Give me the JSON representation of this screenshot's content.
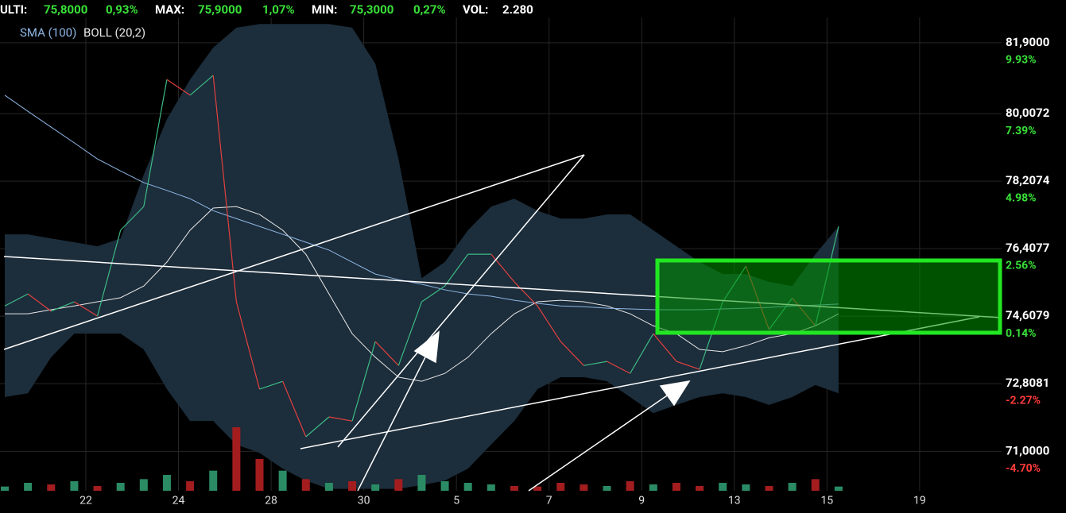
{
  "header": {
    "items": [
      {
        "label": "ULTI:",
        "value": "75,8000",
        "change": "0,93%"
      },
      {
        "label": "MAX:",
        "value": "75,9000",
        "change": "1,07%"
      },
      {
        "label": "MIN:",
        "value": "75,3000",
        "change": "0,27%"
      },
      {
        "label": "VOL:",
        "value": "2.280"
      }
    ]
  },
  "chart_data": {
    "type": "line",
    "x": [
      -1.75,
      -1.25,
      -0.75,
      -0.25,
      0.25,
      0.75,
      1.25,
      1.75,
      2.25,
      2.75,
      3.25,
      3.75,
      4.25,
      4.75,
      5.25,
      5.75,
      6.25,
      6.75,
      7.25,
      7.75,
      8.25,
      8.75,
      9.25,
      9.75,
      10.25,
      10.75,
      11.25,
      11.75,
      12.25,
      12.75,
      13.25,
      13.75,
      14.25,
      14.75,
      15.25,
      15.75,
      16.25
    ],
    "xlim": [
      -1.853,
      19.77
    ],
    "xticks": [
      {
        "value": 0,
        "label": "22"
      },
      {
        "value": 2,
        "label": "24"
      },
      {
        "value": 4,
        "label": "28"
      },
      {
        "value": 6,
        "label": "30"
      },
      {
        "value": 8,
        "label": "5"
      },
      {
        "value": 10,
        "label": "7"
      },
      {
        "value": 12,
        "label": "9"
      },
      {
        "value": 14,
        "label": "13"
      },
      {
        "value": 16,
        "label": "15"
      },
      {
        "value": 18,
        "label": "19"
      }
    ],
    "ylim": [
      69.95,
      83.04
    ],
    "yticks": [
      {
        "value": 81.9,
        "label": "81,9000"
      },
      {
        "value": 80.0072,
        "label": "80,0072"
      },
      {
        "value": 78.2074,
        "label": "78,2074"
      },
      {
        "value": 76.4077,
        "label": "76,4077"
      },
      {
        "value": 74.6079,
        "label": "74,6079"
      },
      {
        "value": 72.8081,
        "label": "72,8081"
      },
      {
        "value": 71.0,
        "label": "71,0000"
      }
    ],
    "y2lim": [
      -6.112,
      11.457
    ],
    "y2ticks": [
      {
        "value": 9.93,
        "label": "9.93%"
      },
      {
        "value": 7.39,
        "label": "7.39%"
      },
      {
        "value": 4.98,
        "label": "4.98%"
      },
      {
        "value": 2.56,
        "label": "2.56%"
      },
      {
        "value": 0.14,
        "label": "0.14%"
      },
      {
        "value": -2.27,
        "label": "-2.27%"
      },
      {
        "value": -4.7,
        "label": "-4.70%"
      }
    ],
    "y3lim": [
      0,
      300
    ],
    "grid": true,
    "series": [
      {
        "type": "line",
        "up_color": "#3dbb85",
        "down_color": "#e2413f",
        "values": [
          74.88,
          75.2,
          74.74,
          74.99,
          74.61,
          76.9,
          77.53,
          80.92,
          80.5,
          81.03,
          74.99,
          72.66,
          72.87,
          71.39,
          71.92,
          71.81,
          73.93,
          73.29,
          74.99,
          75.41,
          76.26,
          76.26,
          75.52,
          74.88,
          73.93,
          73.29,
          73.4,
          73.08,
          74.14,
          73.4,
          73.19,
          74.99,
          75.94,
          74.25,
          75.09,
          74.35,
          77.0
        ]
      },
      {
        "type": "line",
        "name": "SMA (100)",
        "color": "#8fb8e6",
        "values": [
          80.5,
          80.07,
          79.65,
          79.23,
          78.8,
          78.48,
          78.17,
          77.96,
          77.74,
          77.42,
          77.21,
          77.0,
          76.79,
          76.58,
          76.37,
          76.05,
          75.73,
          75.58,
          75.46,
          75.31,
          75.2,
          75.14,
          75.03,
          74.95,
          74.88,
          74.86,
          74.82,
          74.8,
          74.78,
          74.78,
          74.78,
          74.8,
          74.82,
          74.84,
          74.88,
          74.9,
          74.93
        ]
      },
      {
        "type": "band",
        "name": "BOLL (20,2)",
        "color": "#e8e8e8",
        "fill": "#1c2d3b",
        "upper": [
          76.79,
          76.79,
          76.68,
          76.58,
          76.47,
          76.68,
          78.38,
          79.86,
          80.92,
          81.77,
          82.3,
          82.4,
          82.4,
          82.4,
          82.4,
          82.3,
          81.34,
          78.8,
          75.62,
          76.05,
          76.9,
          77.53,
          77.74,
          77.42,
          77.21,
          77.21,
          77.32,
          77.32,
          76.9,
          76.47,
          76.05,
          75.73,
          75.73,
          75.52,
          75.41,
          76.26,
          77.0
        ],
        "values": [
          74.67,
          74.67,
          74.78,
          74.88,
          74.99,
          75.1,
          75.41,
          76.05,
          76.9,
          77.49,
          77.53,
          77.32,
          76.9,
          76.26,
          75.2,
          74.14,
          73.51,
          72.98,
          72.87,
          73.08,
          73.51,
          74.14,
          74.67,
          74.99,
          75.03,
          74.99,
          74.88,
          74.67,
          74.35,
          74.14,
          73.72,
          73.66,
          73.82,
          74.03,
          74.14,
          74.35,
          74.67
        ],
        "lower": [
          72.45,
          72.55,
          73.51,
          74.14,
          74.14,
          74.14,
          73.72,
          72.66,
          71.81,
          71.81,
          71.18,
          70.96,
          70.54,
          70.22,
          70.0,
          70.0,
          70.0,
          70.0,
          70.1,
          70.22,
          70.54,
          71.18,
          71.81,
          72.66,
          72.98,
          72.98,
          72.87,
          72.45,
          72.02,
          72.24,
          72.45,
          72.55,
          72.45,
          72.24,
          72.45,
          72.77,
          72.55
        ]
      },
      {
        "type": "bar",
        "axis": "y3",
        "up_color": "#2a8b64",
        "down_color": "#a31d1f",
        "values": [
          8,
          15,
          12,
          18,
          9,
          15,
          22,
          30,
          18,
          38,
          120,
          60,
          38,
          22,
          15,
          18,
          12,
          22,
          30,
          18,
          15,
          12,
          9,
          8,
          15,
          12,
          9,
          18,
          12,
          15,
          9,
          15,
          12,
          9,
          15,
          22,
          8
        ]
      }
    ]
  }
}
